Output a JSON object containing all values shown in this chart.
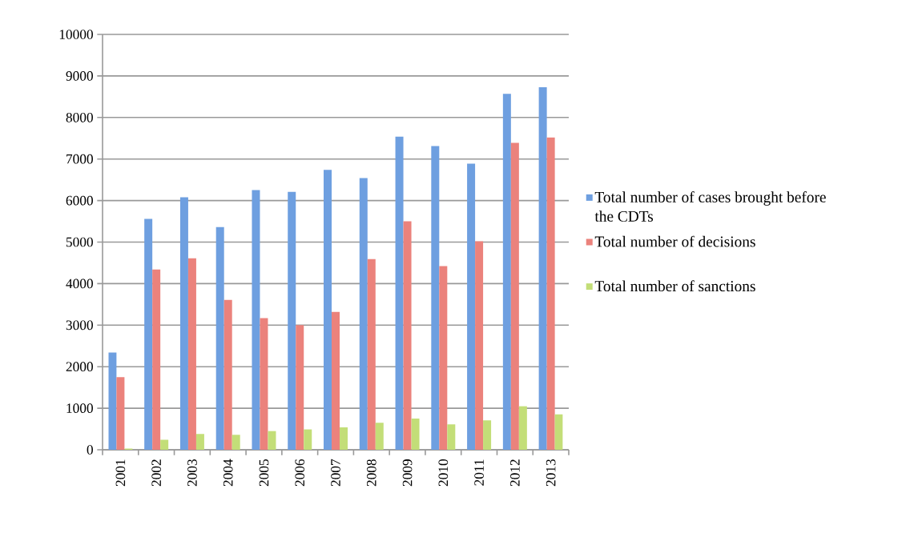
{
  "chart_data": {
    "type": "bar",
    "categories": [
      "2001",
      "2002",
      "2003",
      "2004",
      "2005",
      "2006",
      "2007",
      "2008",
      "2009",
      "2010",
      "2011",
      "2012",
      "2013"
    ],
    "series": [
      {
        "name": "Total number of cases brought before the CDTs",
        "color": "#6e9fe0",
        "values": [
          2340,
          5560,
          6080,
          5360,
          6250,
          6210,
          6740,
          6540,
          7540,
          7310,
          6890,
          8570,
          8730
        ]
      },
      {
        "name": "Total number of decisions",
        "color": "#eb827c",
        "values": [
          1750,
          4340,
          4610,
          3610,
          3170,
          3000,
          3320,
          4590,
          5500,
          4420,
          5020,
          7390,
          7520
        ]
      },
      {
        "name": "Total number of sanctions",
        "color": "#c3de78",
        "values": [
          30,
          240,
          380,
          360,
          450,
          490,
          540,
          650,
          750,
          610,
          710,
          1050,
          850
        ]
      }
    ],
    "ylim": [
      0,
      10000
    ],
    "yticks": [
      0,
      1000,
      2000,
      3000,
      4000,
      5000,
      6000,
      7000,
      8000,
      9000,
      10000
    ],
    "grid": "y",
    "legend": "right"
  }
}
